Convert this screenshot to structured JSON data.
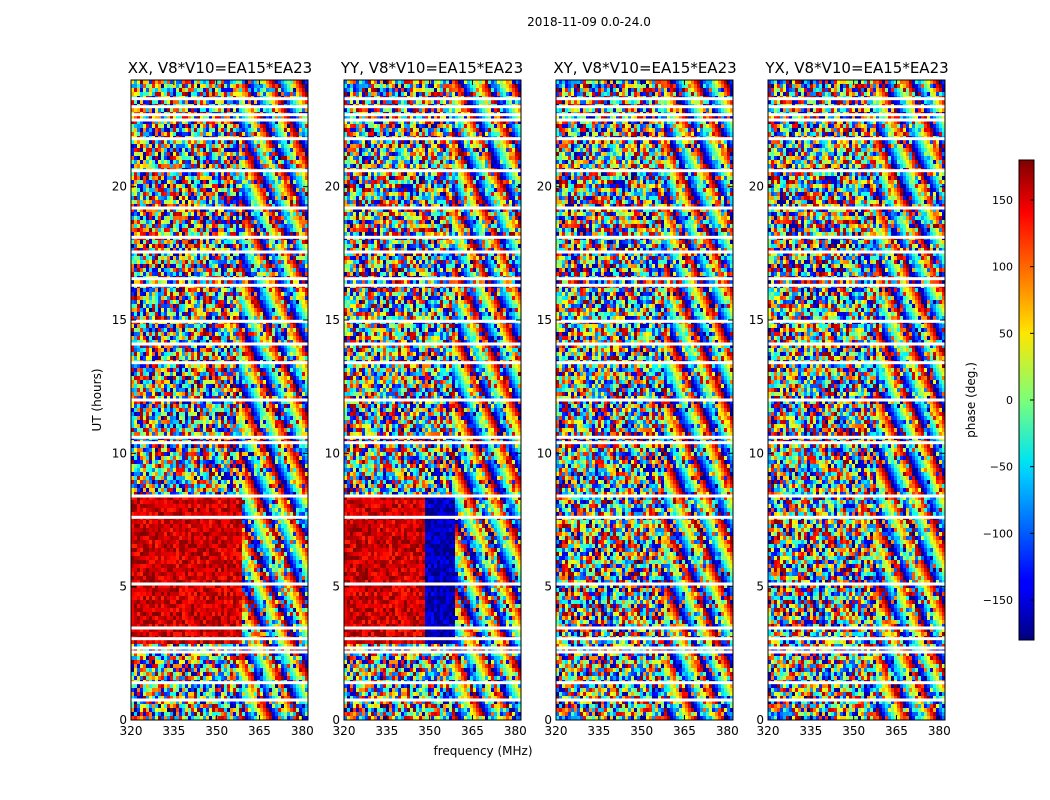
{
  "chart_data": {
    "type": "heatmap",
    "suptitle": "2018-11-09 0.0-24.0",
    "xlabel": "frequency (MHz)",
    "ylabel": "UT (hours)",
    "xlim": [
      320,
      382
    ],
    "ylim": [
      0,
      24
    ],
    "xticks": [
      320,
      335,
      350,
      365,
      380
    ],
    "yticks": [
      0,
      5,
      10,
      15,
      20
    ],
    "colormap": "jet",
    "colorbar": {
      "label": "phase (deg.)",
      "range": [
        -180,
        180
      ],
      "ticks": [
        -150,
        -100,
        -50,
        0,
        50,
        100,
        150
      ],
      "tick_labels": [
        "−150",
        "−100",
        "−50",
        "0",
        "50",
        "100",
        "150"
      ]
    },
    "panels": [
      {
        "title": "XX, V8*V10=EA15*EA23",
        "pattern": "parallel"
      },
      {
        "title": "YY, V8*V10=EA15*EA23",
        "pattern": "parallel"
      },
      {
        "title": "XY, V8*V10=EA15*EA23",
        "pattern": "cross"
      },
      {
        "title": "YX, V8*V10=EA15*EA23",
        "pattern": "cross"
      }
    ],
    "flagged_ut_hours": [
      0.75,
      1.4,
      2.55,
      2.7,
      3.05,
      3.45,
      5.1,
      7.6,
      8.4,
      10.4,
      10.6,
      12.0,
      13.4,
      14.1,
      14.95,
      16.3,
      16.55,
      17.55,
      18.1,
      19.2,
      20.6,
      21.8,
      22.5,
      22.7,
      23.0,
      23.3
    ]
  }
}
